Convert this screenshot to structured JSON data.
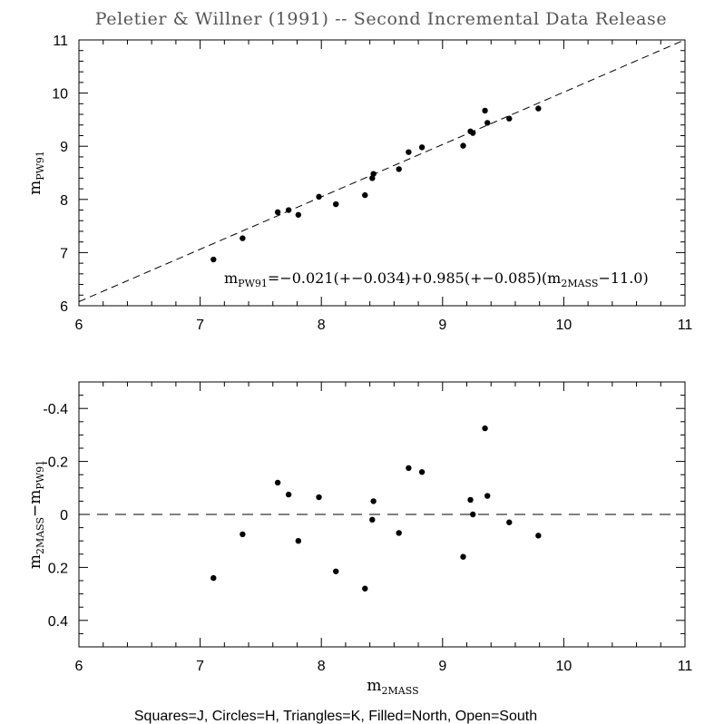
{
  "title": "Peletier & Willner (1991) -- Second Incremental Data Release",
  "legend": "Squares=J, Circles=H, Triangles=K, Filled=North, Open=South",
  "colors": {
    "ink": "#000000",
    "background": "#ffffff"
  },
  "chart_data": [
    {
      "type": "scatter",
      "panel": "top",
      "xlabel": "",
      "ylabel": {
        "base": "m",
        "sub": "PW91"
      },
      "xlim": [
        6,
        11
      ],
      "ylim": [
        6,
        11
      ],
      "xticks": [
        6,
        7,
        8,
        9,
        10,
        11
      ],
      "yticks": [
        6,
        7,
        8,
        9,
        10,
        11
      ],
      "reference_line": {
        "style": "dashed",
        "x": [
          6,
          11
        ],
        "y": [
          6.077,
          11.003
        ]
      },
      "annotation": {
        "base": "m",
        "sub": "PW91",
        "rest_a": "=−0.021(+−0.034)+0.985(+−0.085)(m",
        "sub2": "2MASS",
        "rest_b": "−11.0)"
      },
      "series": [
        {
          "marker": "filled-circle",
          "x": [
            7.11,
            7.35,
            7.64,
            7.73,
            7.81,
            7.98,
            8.12,
            8.36,
            8.42,
            8.43,
            8.64,
            8.72,
            8.83,
            9.17,
            9.23,
            9.25,
            9.35,
            9.37,
            9.55,
            9.79
          ],
          "y": [
            6.87,
            7.27,
            7.76,
            7.8,
            7.71,
            8.05,
            7.91,
            8.08,
            8.4,
            8.48,
            8.57,
            8.89,
            8.98,
            9.01,
            9.28,
            9.25,
            9.67,
            9.44,
            9.52,
            9.71
          ]
        }
      ]
    },
    {
      "type": "scatter",
      "panel": "bottom",
      "xlabel": {
        "base": "m",
        "sub": "2MASS"
      },
      "ylabel": {
        "base": "m",
        "sub": "2MASS",
        "mid": "−m",
        "sub2": "PW91"
      },
      "xlim": [
        6,
        11
      ],
      "ylim": [
        0.5,
        -0.5
      ],
      "xticks": [
        6,
        7,
        8,
        9,
        10,
        11
      ],
      "yticks": [
        0.4,
        0.2,
        0,
        -0.2,
        -0.4
      ],
      "ytick_labels": [
        "0.4",
        "0.2",
        "0",
        "-0.2",
        "-0.4"
      ],
      "reference_line": {
        "style": "dashed",
        "y": 0
      },
      "series": [
        {
          "marker": "filled-circle",
          "x": [
            7.11,
            7.35,
            7.64,
            7.73,
            7.81,
            7.98,
            8.12,
            8.36,
            8.42,
            8.43,
            8.64,
            8.72,
            8.83,
            9.17,
            9.23,
            9.25,
            9.35,
            9.37,
            9.55,
            9.79
          ],
          "y": [
            0.24,
            0.075,
            -0.12,
            -0.075,
            0.1,
            -0.065,
            0.215,
            0.28,
            0.02,
            -0.05,
            0.07,
            -0.175,
            -0.16,
            0.16,
            -0.055,
            0.0,
            -0.325,
            -0.07,
            0.03,
            0.08
          ]
        }
      ]
    }
  ]
}
